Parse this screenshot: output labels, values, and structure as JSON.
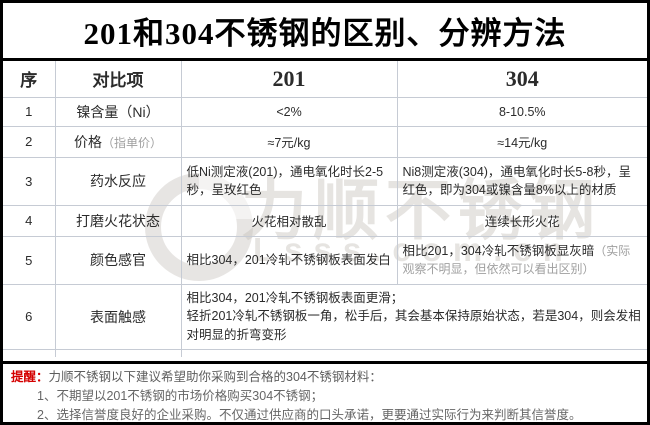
{
  "title": "201和304不锈钢的区别、分辨方法",
  "watermark": {
    "brand": "力顺不锈钢",
    "site": "Lsss.com.cn"
  },
  "colors": {
    "accent_red": "#d40000",
    "grid_border": "#c6cbd4",
    "outer_border": "#000000",
    "note_gray": "#a0a0a0",
    "watermark_gray": "#c4bfb8"
  },
  "table": {
    "headers": {
      "no": "序",
      "item": "对比项",
      "col201": "201",
      "col304": "304"
    },
    "rows": [
      {
        "no": "1",
        "item": "镍含量（Ni）",
        "c201": "<2%",
        "c304": "8-10.5%"
      },
      {
        "no": "2",
        "item": "价格",
        "item_note": "（指单价）",
        "c201": "≈7元/kg",
        "c304": "≈14元/kg"
      },
      {
        "no": "3",
        "item": "药水反应",
        "c201": "低Ni测定液(201)，通电氧化时长2-5秒，呈玫红色",
        "c304": "Ni8测定液(304)，通电氧化时长5-8秒，呈红色，即为304或镍含量8%以上的材质"
      },
      {
        "no": "4",
        "item": "打磨火花状态",
        "c201": "火花相对散乱",
        "c304": "连续长形火花"
      },
      {
        "no": "5",
        "item": "颜色感官",
        "c201": "相比304，201冷轧不锈钢板表面发白",
        "c304": "相比201，304冷轧不锈钢板显灰暗",
        "c304_note": "（实际观察不明显，但依然可以看出区别）"
      },
      {
        "no": "6",
        "item": "表面触感",
        "merged_line1": "相比304，201冷轧不锈钢板表面更滑；",
        "merged_line2": "轻折201冷轧不锈钢板一角，松手后，其会基本保持原始状态，若是304，则会发相对明显的折弯变形"
      }
    ]
  },
  "reminder": {
    "label": "提醒：",
    "intro": "力顺不锈钢以下建议希望助你采购到合格的304不锈钢材料：",
    "items": [
      "1、不期望以201不锈钢的市场价格购买304不锈钢；",
      "2、选择信誉度良好的企业采购。不仅通过供应商的口头承诺，更要通过实际行为来判断其信誉度。"
    ]
  }
}
